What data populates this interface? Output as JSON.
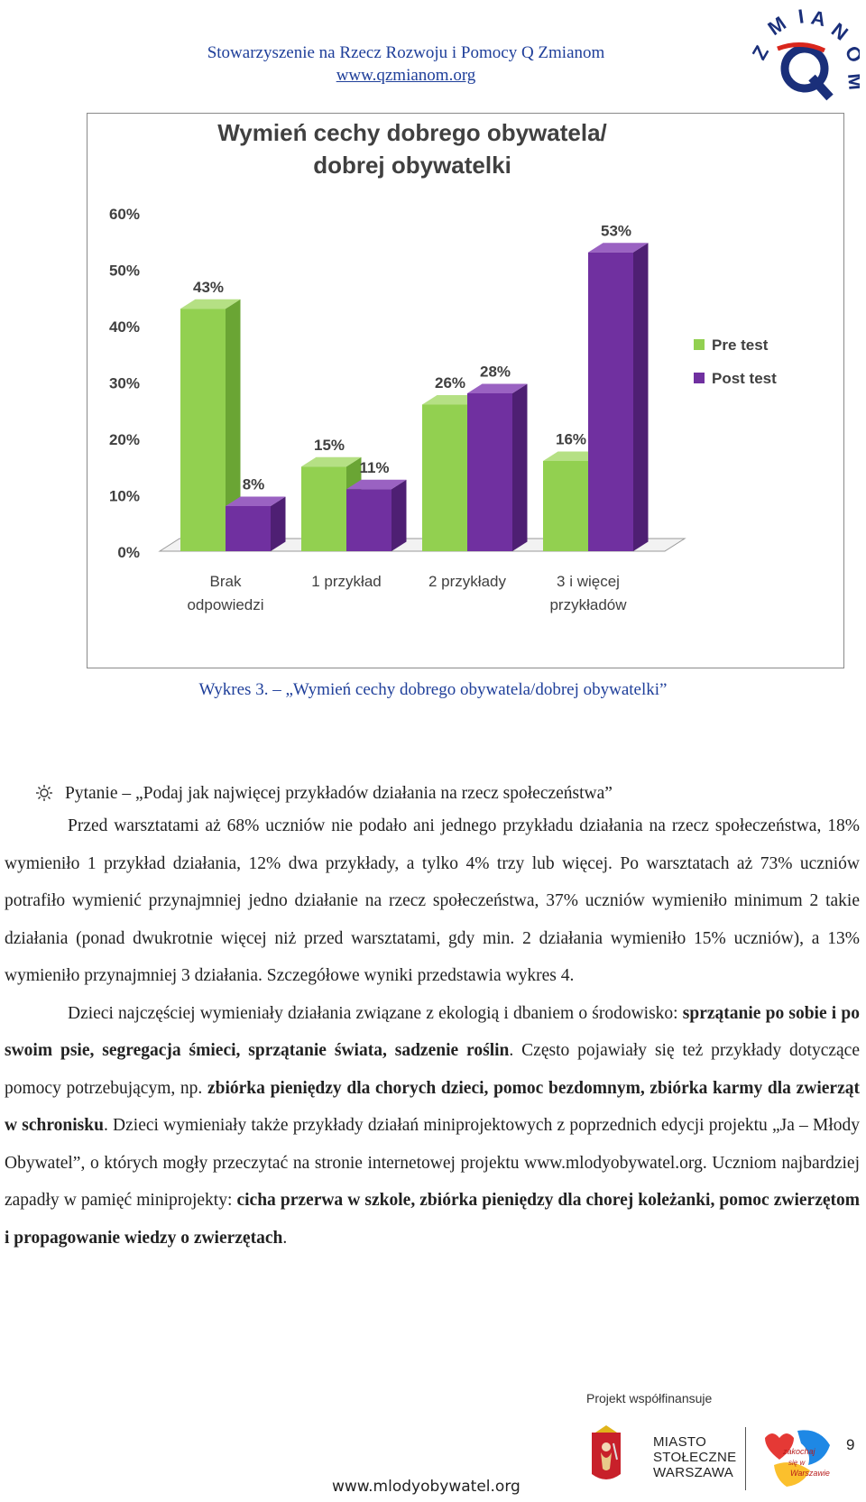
{
  "header": {
    "org_name": "Stowarzyszenie na Rzecz Rozwoju i Pomocy Q Zmianom",
    "org_url": "www.qzmianom.org",
    "logo_text": "ZMIANOM",
    "logo_letter": "Q"
  },
  "chart_data": {
    "type": "bar",
    "title_line1": "Wymień cechy dobrego obywatela/",
    "title_line2": "dobrej obywatelki",
    "categories": [
      [
        "Brak",
        "odpowiedzi"
      ],
      [
        "1 przykład"
      ],
      [
        "2 przykłady"
      ],
      [
        "3 i więcej",
        "przykładów"
      ]
    ],
    "series": [
      {
        "name": "Pre test",
        "values": [
          43,
          15,
          26,
          16
        ],
        "labels": [
          "43%",
          "15%",
          "26%",
          "16%"
        ]
      },
      {
        "name": "Post test",
        "values": [
          8,
          11,
          28,
          53
        ],
        "labels": [
          "8%",
          "11%",
          "28%",
          "53%"
        ]
      }
    ],
    "yticks": [
      "0%",
      "10%",
      "20%",
      "30%",
      "40%",
      "50%",
      "60%"
    ],
    "ylim": [
      0,
      60
    ],
    "legend_position": "right",
    "colors": {
      "pre_front": "#92d050",
      "pre_side": "#6aa534",
      "pre_top": "#b5e084",
      "post_front": "#7030a0",
      "post_side": "#4e1f73",
      "post_top": "#9a62c2"
    }
  },
  "caption": "Wykres 3. – „Wymień cechy dobrego obywatela/dobrej obywatelki”",
  "question": "Pytanie – „Podaj jak najwięcej przykładów działania na rzecz społeczeństwa”",
  "paragraph1": "Przed warsztatami aż 68% uczniów nie podało ani jednego przykładu działania na rzecz społeczeństwa, 18% wymieniło 1 przykład działania, 12% dwa przykłady, a tylko 4% trzy lub więcej. Po warsztatach aż 73% uczniów potrafiło wymienić przynajmniej jedno działanie na rzecz społeczeństwa, 37% uczniów wymieniło minimum 2 takie działania  (ponad dwukrotnie więcej niż przed warsztatami, gdy min. 2 działania wymieniło 15% uczniów), a 13% wymieniło przynajmniej 3 działania. Szczegółowe wyniki przedstawia wykres 4.",
  "paragraph2": {
    "p1": "Dzieci najczęściej wymieniały działania związane z ekologią i dbaniem o środowisko: ",
    "b1": "sprzątanie po sobie i po swoim psie, segregacja śmieci, sprzątanie świata, sadzenie roślin",
    "p2": ". Często pojawiały się też przykłady dotyczące pomocy potrzebującym, np. ",
    "b2": "zbiórka pieniędzy dla chorych dzieci, pomoc bezdomnym, zbiórka karmy dla zwierząt w schronisku",
    "p3": ". Dzieci wymieniały także przykłady działań miniprojektowych z poprzednich edycji projektu „Ja – Młody Obywatel”, o których mogły przeczytać na stronie internetowej projektu www.mlodyobywatel.org. Uczniom najbardziej zapadły w pamięć miniprojekty: ",
    "b3": "cicha przerwa w szkole, zbiórka pieniędzy dla chorej koleżanki, pomoc zwierzętom i propagowanie  wiedzy o zwierzętach",
    "p4": "."
  },
  "footer": {
    "project_cofinanced": "Projekt współfinansuje",
    "miasto_line1": "MIASTO",
    "miasto_line2": "STOŁECZNE",
    "miasto_line3": "WARSZAWA",
    "zakochaj": "zakochaj się w Warszawie",
    "url": "www.mlodyobywatel.org",
    "page_number": "9"
  }
}
